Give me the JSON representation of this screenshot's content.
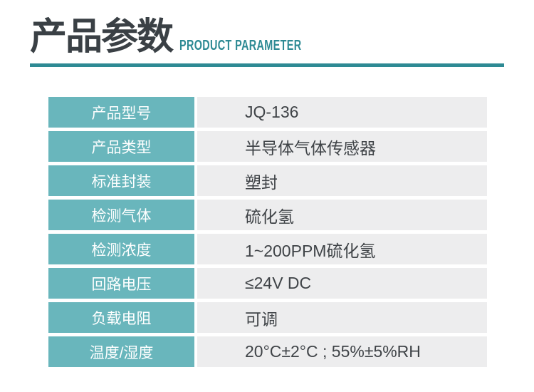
{
  "header": {
    "title": "产品参数",
    "subtitle": "PRODUCT PARAMETER"
  },
  "table": {
    "rows": [
      {
        "label": "产品型号",
        "value": "JQ-136"
      },
      {
        "label": "产品类型",
        "value": "半导体气体传感器"
      },
      {
        "label": "标准封装",
        "value": "塑封"
      },
      {
        "label": "检测气体",
        "value": "硫化氢"
      },
      {
        "label": "检测浓度",
        "value": "1~200PPM硫化氢"
      },
      {
        "label": "回路电压",
        "value": "≤24V DC"
      },
      {
        "label": "负载电阻",
        "value": "可调"
      },
      {
        "label": "温度/湿度",
        "value": "20°C±2°C ; 55%±5%RH"
      }
    ]
  },
  "colors": {
    "label_cell_bg": "#69b6bc",
    "divider_teal": "#2e8a94",
    "subtitle_teal": "#2e8a94",
    "title_text": "#3a4045",
    "value_cell_bg": "#ededee",
    "value_text": "#3f4347",
    "label_text": "#ffffff",
    "page_bg": "#ffffff"
  }
}
